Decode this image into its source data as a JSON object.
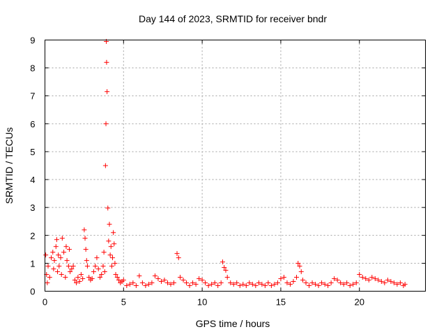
{
  "chart_data": {
    "type": "scatter",
    "title": "Day 144 of 2023, SRMTID for receiver bndr",
    "xlabel": "GPS time / hours",
    "ylabel": "SRMTID / TECUs",
    "xlim": [
      0,
      24.2
    ],
    "ylim": [
      0,
      9
    ],
    "xticks": [
      0,
      5,
      10,
      15,
      20
    ],
    "yticks": [
      0,
      1,
      2,
      3,
      4,
      5,
      6,
      7,
      8,
      9
    ],
    "grid": true,
    "marker": "+",
    "color": "#ff0000",
    "series": [
      {
        "name": "bndr",
        "x": [
          0.05,
          0.1,
          0.15,
          0.2,
          0.3,
          0.4,
          0.5,
          0.55,
          0.6,
          0.7,
          0.75,
          0.8,
          0.85,
          0.9,
          1.0,
          1.05,
          1.1,
          1.2,
          1.3,
          1.35,
          1.4,
          1.5,
          1.55,
          1.6,
          1.7,
          1.8,
          1.9,
          2.0,
          2.1,
          2.2,
          2.3,
          2.4,
          2.5,
          2.55,
          2.6,
          2.65,
          2.7,
          2.8,
          2.9,
          3.0,
          3.1,
          3.2,
          3.3,
          3.4,
          3.5,
          3.6,
          3.7,
          3.75,
          3.8,
          3.85,
          3.88,
          3.9,
          3.92,
          3.95,
          4.0,
          4.05,
          4.1,
          4.15,
          4.2,
          4.25,
          4.3,
          4.35,
          4.4,
          4.45,
          4.5,
          4.6,
          4.7,
          4.8,
          4.9,
          5.0,
          5.2,
          5.4,
          5.6,
          5.8,
          6.0,
          6.2,
          6.4,
          6.6,
          6.8,
          7.0,
          7.2,
          7.4,
          7.6,
          7.8,
          8.0,
          8.2,
          8.4,
          8.5,
          8.6,
          8.8,
          9.0,
          9.2,
          9.4,
          9.6,
          9.8,
          10.0,
          10.2,
          10.4,
          10.6,
          10.8,
          11.0,
          11.2,
          11.3,
          11.4,
          11.5,
          11.6,
          11.8,
          12.0,
          12.2,
          12.4,
          12.6,
          12.8,
          13.0,
          13.2,
          13.4,
          13.6,
          13.8,
          14.0,
          14.2,
          14.4,
          14.6,
          14.8,
          15.0,
          15.2,
          15.4,
          15.6,
          15.8,
          16.0,
          16.1,
          16.2,
          16.3,
          16.4,
          16.6,
          16.8,
          17.0,
          17.2,
          17.4,
          17.6,
          17.8,
          18.0,
          18.2,
          18.4,
          18.6,
          18.8,
          19.0,
          19.2,
          19.4,
          19.6,
          19.8,
          20.0,
          20.2,
          20.4,
          20.6,
          20.8,
          21.0,
          21.2,
          21.4,
          21.6,
          21.8,
          22.0,
          22.2,
          22.4,
          22.6,
          22.8,
          22.9
        ],
        "y": [
          1.3,
          0.6,
          0.3,
          0.9,
          0.5,
          1.2,
          1.4,
          0.8,
          1.1,
          1.6,
          1.85,
          0.7,
          1.3,
          0.9,
          1.2,
          0.6,
          1.9,
          1.4,
          0.5,
          1.6,
          1.1,
          0.9,
          1.5,
          0.7,
          0.8,
          0.9,
          0.4,
          0.3,
          0.5,
          0.35,
          0.6,
          0.45,
          2.2,
          1.9,
          1.5,
          1.1,
          0.9,
          0.5,
          0.4,
          0.45,
          0.7,
          0.9,
          1.2,
          0.8,
          0.5,
          0.6,
          0.9,
          1.4,
          0.7,
          4.5,
          6.0,
          8.95,
          8.2,
          7.15,
          2.98,
          1.8,
          2.4,
          1.3,
          1.6,
          0.9,
          1.2,
          2.1,
          1.7,
          1.0,
          0.6,
          0.5,
          0.4,
          0.3,
          0.35,
          0.4,
          0.2,
          0.25,
          0.3,
          0.2,
          0.55,
          0.3,
          0.2,
          0.25,
          0.3,
          0.55,
          0.45,
          0.35,
          0.4,
          0.3,
          0.25,
          0.3,
          1.35,
          1.2,
          0.5,
          0.4,
          0.3,
          0.2,
          0.3,
          0.25,
          0.45,
          0.4,
          0.3,
          0.2,
          0.25,
          0.3,
          0.2,
          0.3,
          1.05,
          0.85,
          0.75,
          0.5,
          0.3,
          0.25,
          0.3,
          0.2,
          0.25,
          0.2,
          0.3,
          0.25,
          0.2,
          0.3,
          0.25,
          0.2,
          0.3,
          0.2,
          0.25,
          0.3,
          0.45,
          0.5,
          0.3,
          0.25,
          0.35,
          0.5,
          1.0,
          0.9,
          0.7,
          0.4,
          0.3,
          0.2,
          0.3,
          0.25,
          0.2,
          0.3,
          0.25,
          0.2,
          0.3,
          0.45,
          0.4,
          0.3,
          0.25,
          0.3,
          0.2,
          0.25,
          0.3,
          0.6,
          0.5,
          0.45,
          0.4,
          0.5,
          0.45,
          0.4,
          0.35,
          0.3,
          0.4,
          0.35,
          0.3,
          0.25,
          0.3,
          0.2,
          0.25
        ]
      }
    ]
  }
}
